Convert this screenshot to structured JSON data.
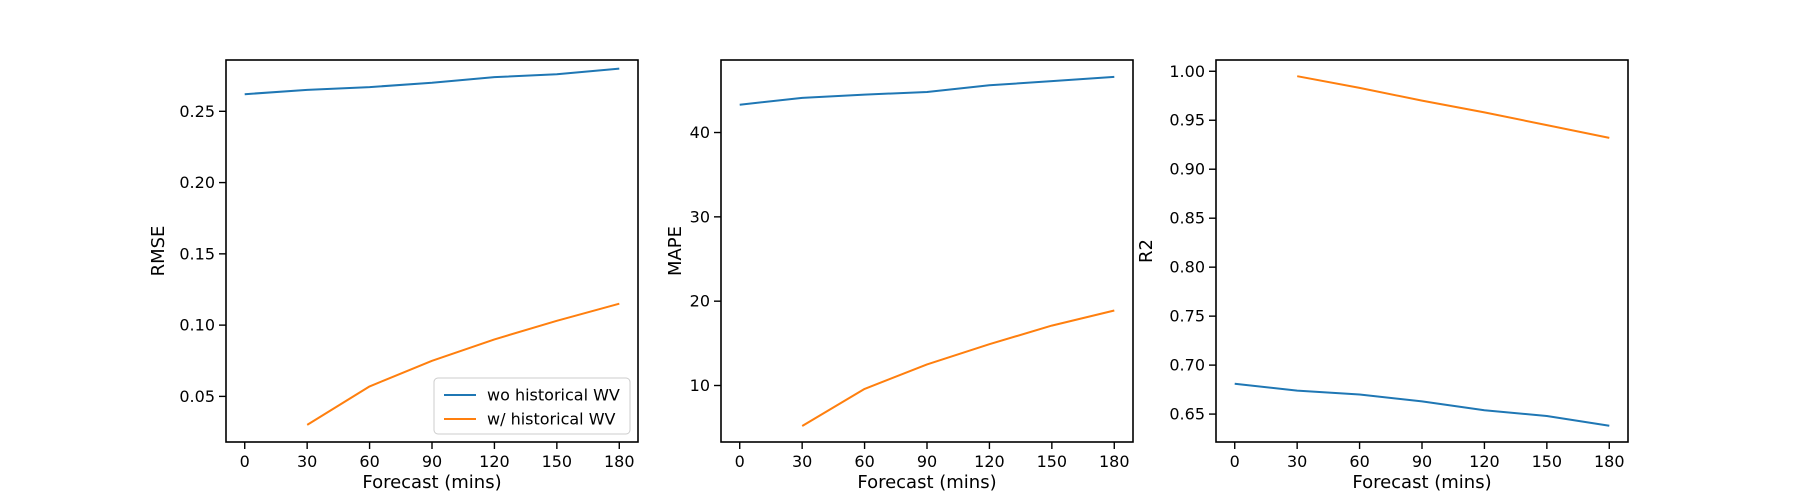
{
  "colors": {
    "series_blue": "#1f77b4",
    "series_orange": "#ff7f0e"
  },
  "chart_data": [
    {
      "type": "line",
      "xlabel": "Forecast (mins)",
      "ylabel": "RMSE",
      "x_ticks": [
        "0",
        "30",
        "60",
        "90",
        "120",
        "150",
        "180"
      ],
      "y_ticks": [
        "0.05",
        "0.10",
        "0.15",
        "0.20",
        "0.25"
      ],
      "xlim": [
        -9,
        189
      ],
      "ylim": [
        0.018,
        0.286
      ],
      "grid": false,
      "legend": {
        "placement": "lower right"
      },
      "series": [
        {
          "name": "wo historical WV",
          "color": "#1f77b4",
          "x": [
            0,
            30,
            60,
            90,
            120,
            150,
            180
          ],
          "y": [
            0.262,
            0.265,
            0.267,
            0.27,
            0.274,
            0.276,
            0.28
          ]
        },
        {
          "name": "w/ historical WV",
          "color": "#ff7f0e",
          "x": [
            30,
            60,
            90,
            120,
            150,
            180
          ],
          "y": [
            0.03,
            0.057,
            0.075,
            0.09,
            0.103,
            0.115
          ]
        }
      ]
    },
    {
      "type": "line",
      "xlabel": "Forecast (mins)",
      "ylabel": "MAPE",
      "x_ticks": [
        "0",
        "30",
        "60",
        "90",
        "120",
        "150",
        "180"
      ],
      "y_ticks": [
        "10",
        "20",
        "30",
        "40"
      ],
      "xlim": [
        -9,
        189
      ],
      "ylim": [
        3.3,
        48.6
      ],
      "grid": false,
      "legend": null,
      "series": [
        {
          "name": "wo historical WV",
          "color": "#1f77b4",
          "x": [
            0,
            30,
            60,
            90,
            120,
            150,
            180
          ],
          "y": [
            43.3,
            44.1,
            44.5,
            44.8,
            45.6,
            46.1,
            46.6
          ]
        },
        {
          "name": "w/ historical WV",
          "color": "#ff7f0e",
          "x": [
            30,
            60,
            90,
            120,
            150,
            180
          ],
          "y": [
            5.2,
            9.6,
            12.5,
            14.9,
            17.1,
            18.9
          ]
        }
      ]
    },
    {
      "type": "line",
      "xlabel": "Forecast (mins)",
      "ylabel": "R2",
      "x_ticks": [
        "0",
        "30",
        "60",
        "90",
        "120",
        "150",
        "180"
      ],
      "y_ticks": [
        "0.65",
        "0.70",
        "0.75",
        "0.80",
        "0.85",
        "0.90",
        "0.95",
        "1.00"
      ],
      "xlim": [
        -9,
        189
      ],
      "ylim": [
        0.6215,
        1.0115
      ],
      "grid": false,
      "legend": null,
      "series": [
        {
          "name": "wo historical WV",
          "color": "#1f77b4",
          "x": [
            0,
            30,
            60,
            90,
            120,
            150,
            180
          ],
          "y": [
            0.681,
            0.674,
            0.67,
            0.663,
            0.654,
            0.648,
            0.638
          ]
        },
        {
          "name": "w/ historical WV",
          "color": "#ff7f0e",
          "x": [
            30,
            60,
            90,
            120,
            150,
            180
          ],
          "y": [
            0.995,
            0.983,
            0.97,
            0.958,
            0.945,
            0.932
          ]
        }
      ]
    }
  ]
}
